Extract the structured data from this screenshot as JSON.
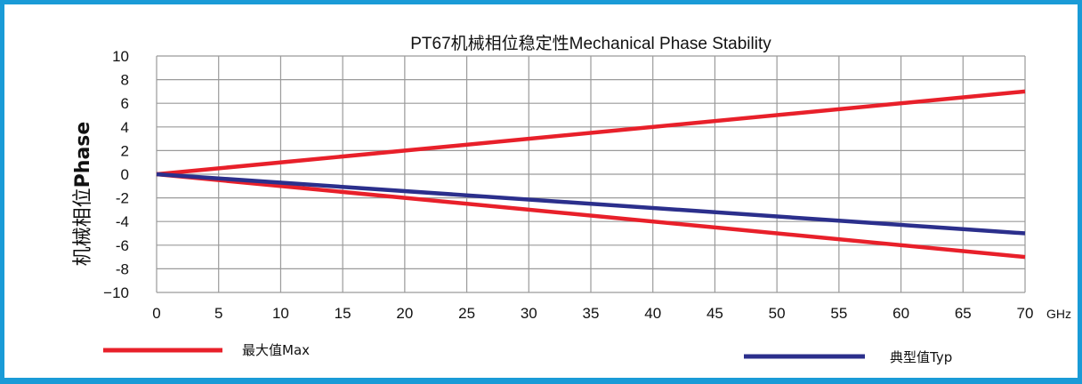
{
  "chart_data": {
    "type": "line",
    "title": "PT67机械相位稳定性Mechanical Phase Stability",
    "ylabel_cn": "机械相位",
    "ylabel_en": "Phase",
    "x_unit": "GHz",
    "xlim": [
      0,
      70
    ],
    "ylim": [
      -10,
      10
    ],
    "x_ticks": [
      0,
      5,
      10,
      15,
      20,
      25,
      30,
      35,
      40,
      45,
      50,
      55,
      60,
      65,
      70
    ],
    "y_ticks": [
      10,
      8,
      6,
      4,
      2,
      0,
      -2,
      -4,
      -6,
      -8,
      -10
    ],
    "y_tick_labels": [
      "10",
      "8",
      "6",
      "4",
      "2",
      "0",
      "-2",
      "-4",
      "-6",
      "-8",
      "−10"
    ],
    "grid": true,
    "legend_position": "bottom",
    "series": [
      {
        "name": "最大值Max",
        "color": "#e8202a",
        "x": [
          0,
          70
        ],
        "y": [
          0,
          7
        ]
      },
      {
        "name": "最大值Max",
        "color": "#e8202a",
        "x": [
          0,
          70
        ],
        "y": [
          0,
          -7
        ],
        "legend": false
      },
      {
        "name": "典型值Typ",
        "color": "#2b2f8c",
        "x": [
          0,
          70
        ],
        "y": [
          0,
          -5
        ]
      }
    ]
  },
  "legend": {
    "max_label": "最大值Max",
    "typ_label": "典型值Typ"
  },
  "colors": {
    "frame": "#1a9bd7",
    "grid": "#9a9a9a",
    "max": "#e8202a",
    "typ": "#2b2f8c"
  }
}
